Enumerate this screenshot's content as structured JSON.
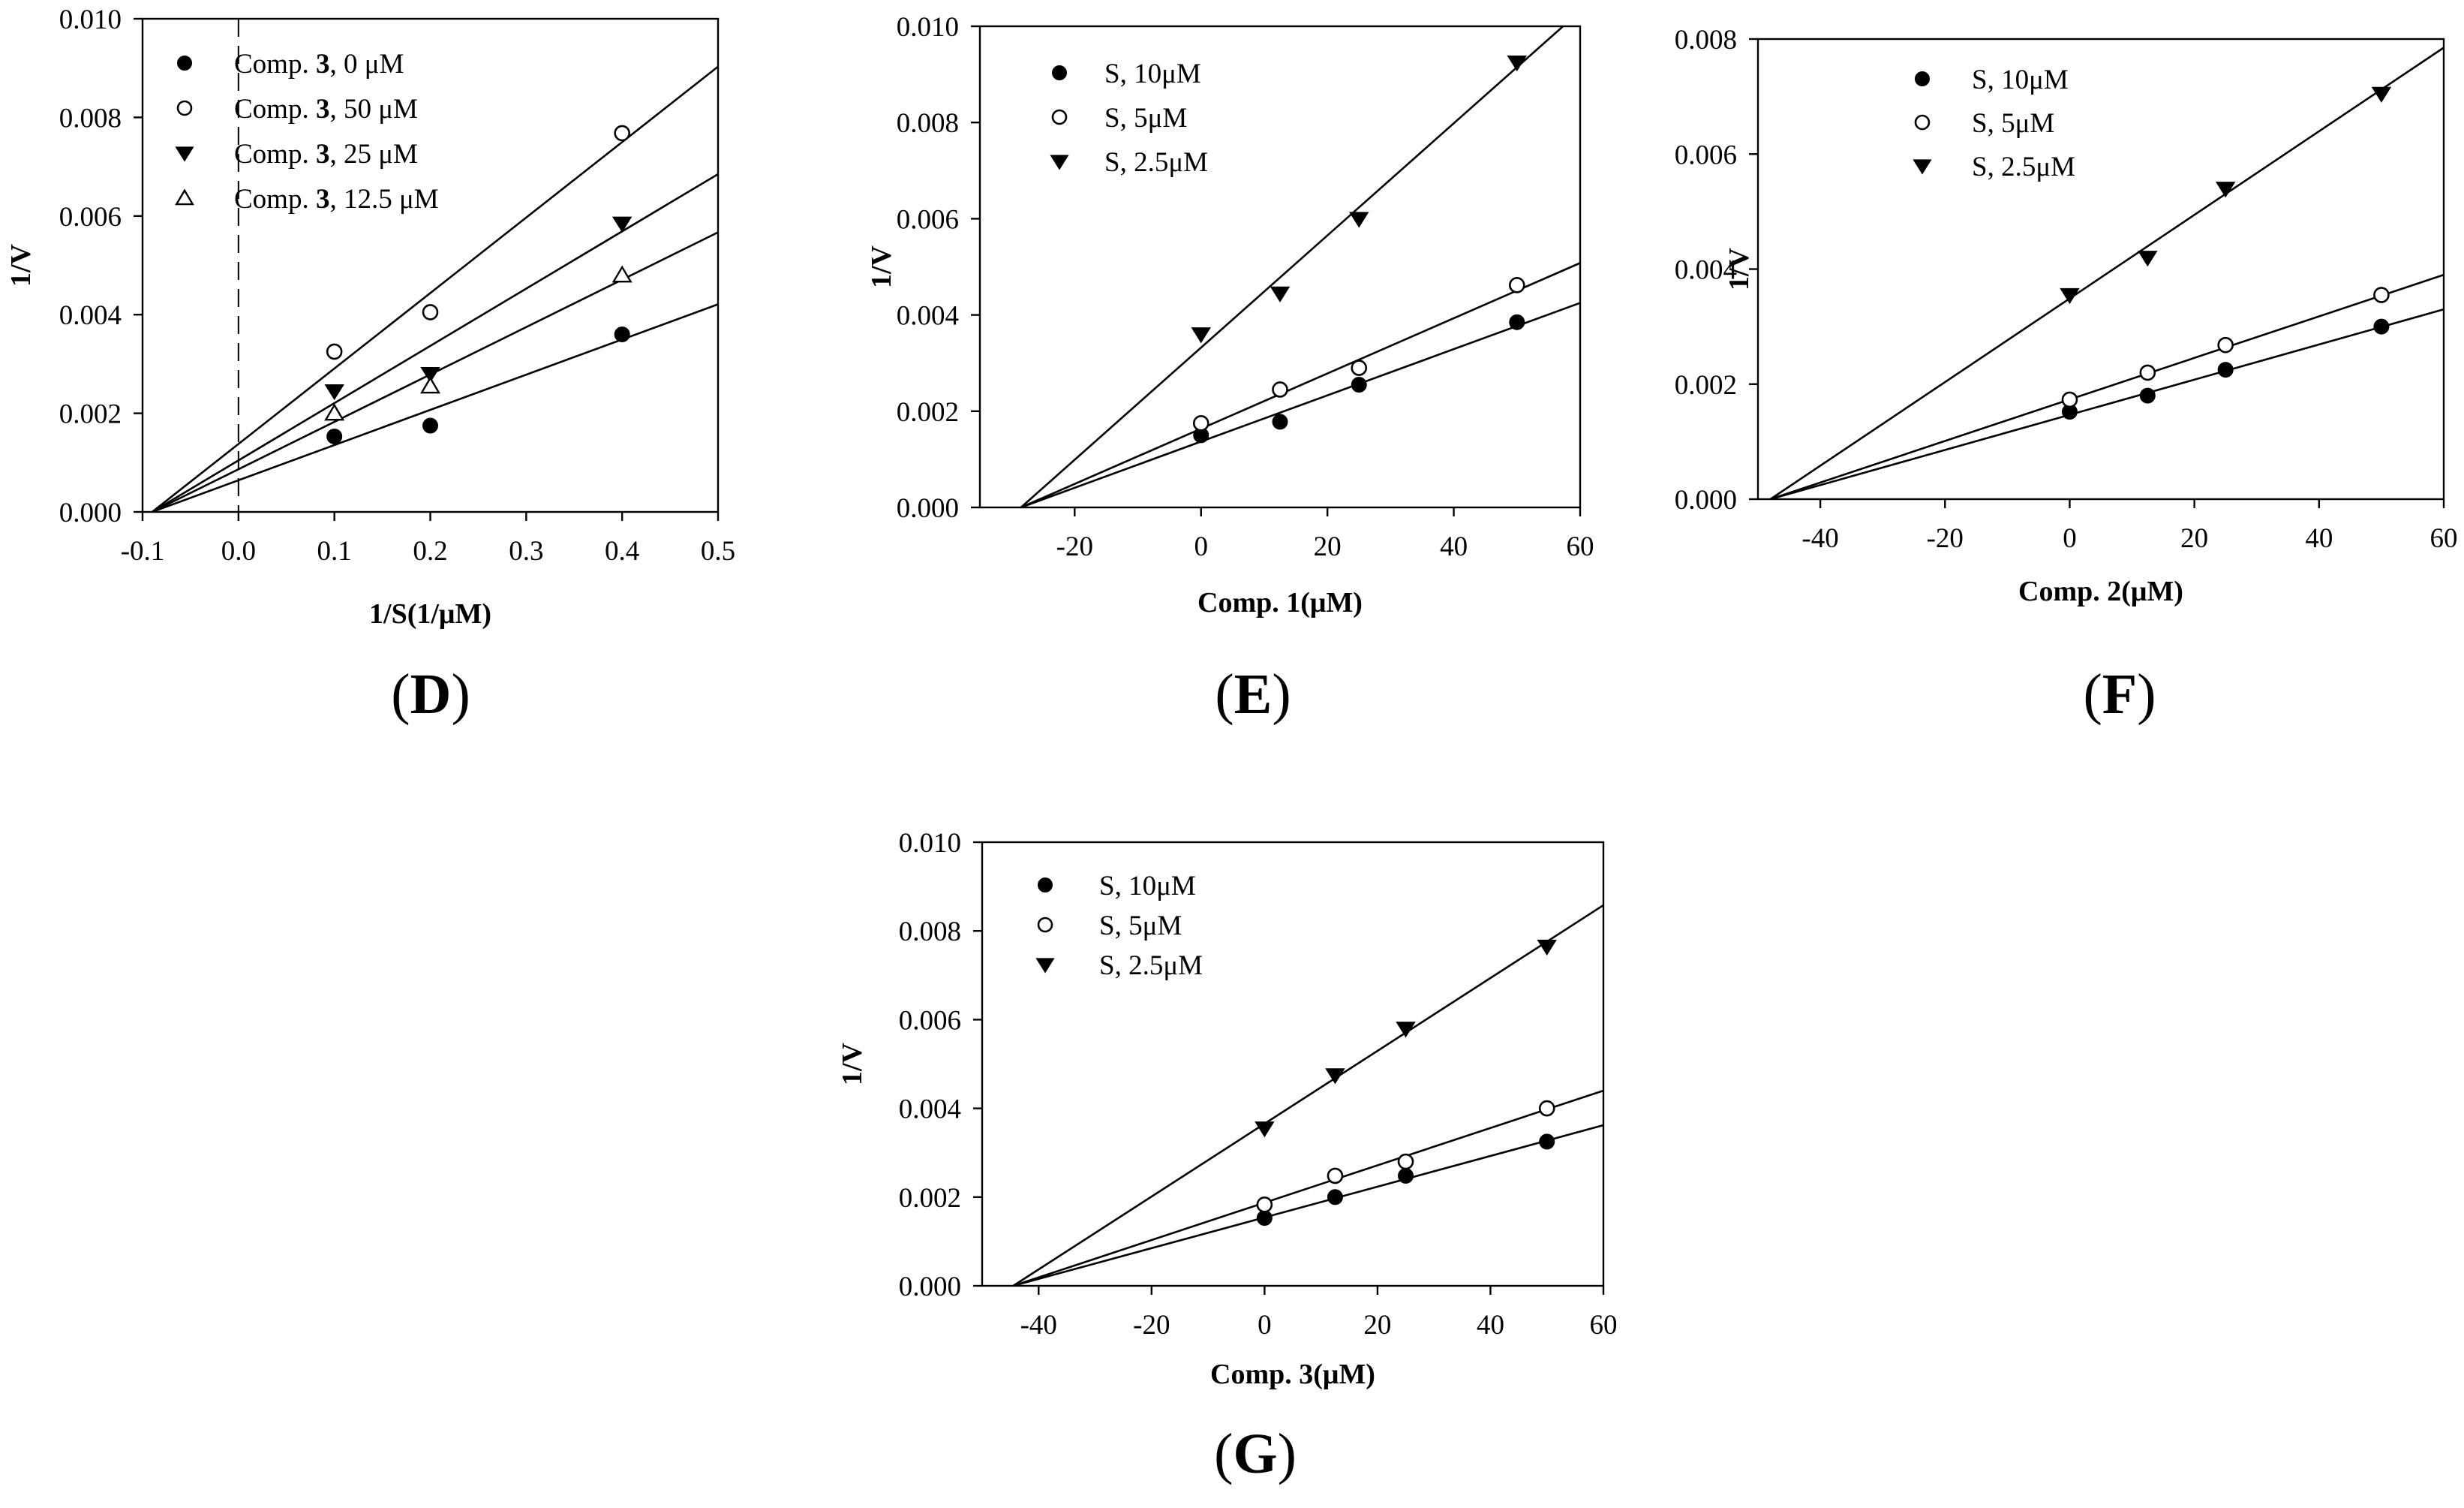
{
  "figure": {
    "panels": [
      "D",
      "E",
      "F",
      "G"
    ]
  },
  "chart_data": [
    {
      "id": "D",
      "panel_label": "(D)",
      "type": "scatter",
      "fit": "linear",
      "xlabel": "1/S(1/μM)",
      "ylabel": "1/V",
      "xlim": [
        -0.1,
        0.5
      ],
      "ylim": [
        0,
        0.01
      ],
      "xticks": [
        -0.1,
        0,
        0.1,
        0.2,
        0.3,
        0.4,
        0.5
      ],
      "xtick_labels": [
        "-0.1",
        "0.0",
        "0.1",
        "0.2",
        "0.3",
        "0.4",
        "0.5"
      ],
      "yticks": [
        0,
        0.002,
        0.004,
        0.006,
        0.008,
        0.01
      ],
      "ytick_labels": [
        "0.000",
        "0.002",
        "0.004",
        "0.006",
        "0.008",
        "0.010"
      ],
      "zero_line": "dashed vertical at x = 0",
      "legend_position": "top-left",
      "series": [
        {
          "name": "Comp. 3, 0 μM",
          "legend_prefix": "Comp. ",
          "legend_bold": "3",
          "legend_suffix": ", 0 μM",
          "marker": "filled-circle",
          "x": [
            0.1,
            0.2,
            0.4
          ],
          "y": [
            0.00153,
            0.00175,
            0.0036
          ],
          "line": {
            "x0": -0.09,
            "y0": 0,
            "x1": 0.5,
            "y1": 0.00421
          }
        },
        {
          "name": "Comp. 3, 50 μM",
          "legend_prefix": "Comp. ",
          "legend_bold": "3",
          "legend_suffix": ", 50 μM",
          "marker": "open-circle",
          "x": [
            0.1,
            0.2,
            0.4
          ],
          "y": [
            0.00325,
            0.00405,
            0.00768
          ],
          "line": {
            "x0": -0.09,
            "y0": 0,
            "x1": 0.5,
            "y1": 0.00903
          }
        },
        {
          "name": "Comp. 3, 25 μM",
          "legend_prefix": "Comp. ",
          "legend_bold": "3",
          "legend_suffix": ", 25 μM",
          "marker": "filled-triangle-down",
          "x": [
            0.1,
            0.2,
            0.4
          ],
          "y": [
            0.00245,
            0.0028,
            0.00585
          ],
          "line": {
            "x0": -0.09,
            "y0": 0,
            "x1": 0.5,
            "y1": 0.00685
          }
        },
        {
          "name": "Comp. 3, 12.5 μM",
          "legend_prefix": "Comp. ",
          "legend_bold": "3",
          "legend_suffix": ", 12.5 μM",
          "marker": "open-triangle-up",
          "x": [
            0.1,
            0.2,
            0.4
          ],
          "y": [
            0.002,
            0.00255,
            0.0048
          ],
          "line": {
            "x0": -0.09,
            "y0": 0,
            "x1": 0.5,
            "y1": 0.00567
          }
        }
      ]
    },
    {
      "id": "E",
      "panel_label": "(E)",
      "type": "scatter",
      "fit": "linear",
      "xlabel": "Comp. 1(μM)",
      "ylabel": "1/V",
      "xlim": [
        -35,
        60
      ],
      "ylim": [
        0,
        0.01
      ],
      "xticks": [
        -20,
        0,
        20,
        40,
        60
      ],
      "xtick_labels": [
        "-20",
        "0",
        "20",
        "40",
        "60"
      ],
      "yticks": [
        0,
        0.002,
        0.004,
        0.006,
        0.008,
        0.01
      ],
      "ytick_labels": [
        "0.000",
        "0.002",
        "0.004",
        "0.006",
        "0.008",
        "0.010"
      ],
      "legend_position": "top-left",
      "series": [
        {
          "name": "S, 10μM",
          "marker": "filled-circle",
          "x": [
            0,
            12.5,
            25,
            50
          ],
          "y": [
            0.0015,
            0.00178,
            0.00255,
            0.00385
          ],
          "line": {
            "x0": -28.5,
            "y0": 0,
            "x1": 60,
            "y1": 0.00425
          }
        },
        {
          "name": "S, 5μM",
          "marker": "open-circle",
          "x": [
            0,
            12.5,
            25,
            50
          ],
          "y": [
            0.00175,
            0.00245,
            0.0029,
            0.00462
          ],
          "line": {
            "x0": -28.5,
            "y0": 0,
            "x1": 60,
            "y1": 0.00508
          }
        },
        {
          "name": "S, 2.5μM",
          "marker": "filled-triangle-down",
          "x": [
            0,
            12.5,
            25,
            50
          ],
          "y": [
            0.0036,
            0.00445,
            0.006,
            0.00925
          ],
          "line": {
            "x0": -28.5,
            "y0": 0,
            "x1": 57.3,
            "y1": 0.01
          }
        }
      ]
    },
    {
      "id": "F",
      "panel_label": "(F)",
      "type": "scatter",
      "fit": "linear",
      "xlabel": "Comp. 2(μM)",
      "ylabel": "1/V",
      "xlim": [
        -50,
        60
      ],
      "ylim": [
        0,
        0.008
      ],
      "xticks": [
        -40,
        -20,
        0,
        20,
        40,
        60
      ],
      "xtick_labels": [
        "-40",
        "-20",
        "0",
        "20",
        "40",
        "60"
      ],
      "yticks": [
        0,
        0.002,
        0.004,
        0.006,
        0.008
      ],
      "ytick_labels": [
        "0.000",
        "0.002",
        "0.004",
        "0.006",
        "0.008"
      ],
      "legend_position": "top-left",
      "series": [
        {
          "name": "S, 10μM",
          "marker": "filled-circle",
          "x": [
            0,
            12.5,
            25,
            50
          ],
          "y": [
            0.00152,
            0.0018,
            0.00225,
            0.003
          ],
          "line": {
            "x0": -48,
            "y0": 0,
            "x1": 60,
            "y1": 0.0033
          }
        },
        {
          "name": "S, 5μM",
          "marker": "open-circle",
          "x": [
            0,
            12.5,
            25,
            50
          ],
          "y": [
            0.00173,
            0.0022,
            0.00268,
            0.00355
          ],
          "line": {
            "x0": -48,
            "y0": 0,
            "x1": 60,
            "y1": 0.0039
          }
        },
        {
          "name": "S, 2.5μM",
          "marker": "filled-triangle-down",
          "x": [
            0,
            12.5,
            25,
            50
          ],
          "y": [
            0.00355,
            0.0042,
            0.0054,
            0.00705
          ],
          "line": {
            "x0": -48,
            "y0": 0,
            "x1": 60,
            "y1": 0.00785
          }
        }
      ]
    },
    {
      "id": "G",
      "panel_label": "(G)",
      "type": "scatter",
      "fit": "linear",
      "xlabel": "Comp. 3(μM)",
      "ylabel": "1/V",
      "xlim": [
        -50,
        60
      ],
      "ylim": [
        0,
        0.01
      ],
      "xticks": [
        -40,
        -20,
        0,
        20,
        40,
        60
      ],
      "xtick_labels": [
        "-40",
        "-20",
        "0",
        "20",
        "40",
        "60"
      ],
      "yticks": [
        0,
        0.002,
        0.004,
        0.006,
        0.008,
        0.01
      ],
      "ytick_labels": [
        "0.000",
        "0.002",
        "0.004",
        "0.006",
        "0.008",
        "0.010"
      ],
      "legend_position": "top-left",
      "series": [
        {
          "name": "S, 10μM",
          "marker": "filled-circle",
          "x": [
            0,
            12.5,
            25,
            50
          ],
          "y": [
            0.00153,
            0.002,
            0.00248,
            0.00325
          ],
          "line": {
            "x0": -44.5,
            "y0": 0,
            "x1": 60,
            "y1": 0.00362
          }
        },
        {
          "name": "S, 5μM",
          "marker": "open-circle",
          "x": [
            0,
            12.5,
            25,
            50
          ],
          "y": [
            0.00183,
            0.00248,
            0.0028,
            0.004
          ],
          "line": {
            "x0": -44.5,
            "y0": 0,
            "x1": 60,
            "y1": 0.0044
          }
        },
        {
          "name": "S, 2.5μM",
          "marker": "filled-triangle-down",
          "x": [
            0,
            12.5,
            25,
            50
          ],
          "y": [
            0.00355,
            0.00475,
            0.0058,
            0.00765
          ],
          "line": {
            "x0": -44.5,
            "y0": 0,
            "x1": 60,
            "y1": 0.00858
          }
        }
      ]
    }
  ]
}
